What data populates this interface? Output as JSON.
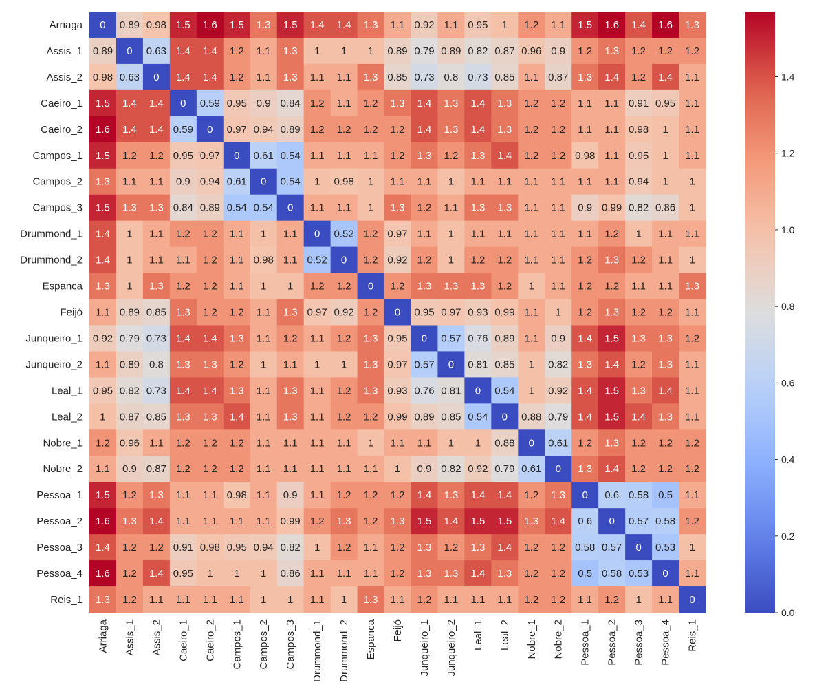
{
  "chart_data": {
    "type": "heatmap",
    "title": "",
    "xlabel": "",
    "ylabel": "",
    "colormap": "coolwarm",
    "annotated": true,
    "labels": [
      "Arriaga",
      "Assis_1",
      "Assis_2",
      "Caeiro_1",
      "Caeiro_2",
      "Campos_1",
      "Campos_2",
      "Campos_3",
      "Drummond_1",
      "Drummond_2",
      "Espanca",
      "Feijó",
      "Junqueiro_1",
      "Junqueiro_2",
      "Leal_1",
      "Leal_2",
      "Nobre_1",
      "Nobre_2",
      "Pessoa_1",
      "Pessoa_2",
      "Pessoa_3",
      "Pessoa_4",
      "Reis_1"
    ],
    "matrix": [
      [
        0,
        0.89,
        0.98,
        1.5,
        1.6,
        1.5,
        1.3,
        1.5,
        1.4,
        1.4,
        1.3,
        1.1,
        0.92,
        1.1,
        0.95,
        1,
        1.2,
        1.1,
        1.5,
        1.6,
        1.4,
        1.6,
        1.3
      ],
      [
        0.89,
        0,
        0.63,
        1.4,
        1.4,
        1.2,
        1.1,
        1.3,
        1,
        1,
        1,
        0.89,
        0.79,
        0.89,
        0.82,
        0.87,
        0.96,
        0.9,
        1.2,
        1.3,
        1.2,
        1.2,
        1.2
      ],
      [
        0.98,
        0.63,
        0,
        1.4,
        1.4,
        1.2,
        1.1,
        1.3,
        1.1,
        1.1,
        1.3,
        0.85,
        0.73,
        0.8,
        0.73,
        0.85,
        1.1,
        0.87,
        1.3,
        1.4,
        1.2,
        1.4,
        1.1
      ],
      [
        1.5,
        1.4,
        1.4,
        0,
        0.59,
        0.95,
        0.9,
        0.84,
        1.2,
        1.1,
        1.2,
        1.3,
        1.4,
        1.3,
        1.4,
        1.3,
        1.2,
        1.2,
        1.1,
        1.1,
        0.91,
        0.95,
        1.1
      ],
      [
        1.6,
        1.4,
        1.4,
        0.59,
        0,
        0.97,
        0.94,
        0.89,
        1.2,
        1.2,
        1.2,
        1.2,
        1.4,
        1.3,
        1.4,
        1.3,
        1.2,
        1.2,
        1.1,
        1.1,
        0.98,
        1,
        1.1
      ],
      [
        1.5,
        1.2,
        1.2,
        0.95,
        0.97,
        0,
        0.61,
        0.54,
        1.1,
        1.1,
        1.1,
        1.2,
        1.3,
        1.2,
        1.3,
        1.4,
        1.2,
        1.2,
        0.98,
        1.1,
        0.95,
        1,
        1.1
      ],
      [
        1.3,
        1.1,
        1.1,
        0.9,
        0.94,
        0.61,
        0,
        0.54,
        1,
        0.98,
        1,
        1.1,
        1.1,
        1,
        1.1,
        1.1,
        1.1,
        1.1,
        1.1,
        1.1,
        0.94,
        1,
        1
      ],
      [
        1.5,
        1.3,
        1.3,
        0.84,
        0.89,
        0.54,
        0.54,
        0,
        1.1,
        1.1,
        1,
        1.3,
        1.2,
        1.1,
        1.3,
        1.3,
        1.1,
        1.1,
        0.9,
        0.99,
        0.82,
        0.86,
        1
      ],
      [
        1.4,
        1,
        1.1,
        1.2,
        1.2,
        1.1,
        1,
        1.1,
        0,
        0.52,
        1.2,
        0.97,
        1.1,
        1,
        1.1,
        1.1,
        1.1,
        1.1,
        1.1,
        1.2,
        1,
        1.1,
        1.1
      ],
      [
        1.4,
        1,
        1.1,
        1.1,
        1.2,
        1.1,
        0.98,
        1.1,
        0.52,
        0,
        1.2,
        0.92,
        1.2,
        1,
        1.2,
        1.2,
        1.1,
        1.1,
        1.2,
        1.3,
        1.2,
        1.1,
        1
      ],
      [
        1.3,
        1,
        1.3,
        1.2,
        1.2,
        1.1,
        1,
        1,
        1.2,
        1.2,
        0,
        1.2,
        1.3,
        1.3,
        1.3,
        1.2,
        1,
        1.1,
        1.2,
        1.2,
        1.1,
        1.1,
        1.3
      ],
      [
        1.1,
        0.89,
        0.85,
        1.3,
        1.2,
        1.2,
        1.1,
        1.3,
        0.97,
        0.92,
        1.2,
        0,
        0.95,
        0.97,
        0.93,
        0.99,
        1.1,
        1,
        1.2,
        1.3,
        1.2,
        1.2,
        1.1
      ],
      [
        0.92,
        0.79,
        0.73,
        1.4,
        1.4,
        1.3,
        1.1,
        1.2,
        1.1,
        1.2,
        1.3,
        0.95,
        0,
        0.57,
        0.76,
        0.89,
        1.1,
        0.9,
        1.4,
        1.5,
        1.3,
        1.3,
        1.2
      ],
      [
        1.1,
        0.89,
        0.8,
        1.3,
        1.3,
        1.2,
        1,
        1.1,
        1,
        1,
        1.3,
        0.97,
        0.57,
        0,
        0.81,
        0.85,
        1,
        0.82,
        1.3,
        1.4,
        1.2,
        1.3,
        1.1
      ],
      [
        0.95,
        0.82,
        0.73,
        1.4,
        1.4,
        1.3,
        1.1,
        1.3,
        1.1,
        1.2,
        1.3,
        0.93,
        0.76,
        0.81,
        0,
        0.54,
        1,
        0.92,
        1.4,
        1.5,
        1.3,
        1.4,
        1.1
      ],
      [
        1,
        0.87,
        0.85,
        1.3,
        1.3,
        1.4,
        1.1,
        1.3,
        1.1,
        1.2,
        1.2,
        0.99,
        0.89,
        0.85,
        0.54,
        0,
        0.88,
        0.79,
        1.4,
        1.5,
        1.4,
        1.3,
        1.1
      ],
      [
        1.2,
        0.96,
        1.1,
        1.2,
        1.2,
        1.2,
        1.1,
        1.1,
        1.1,
        1.1,
        1,
        1.1,
        1.1,
        1,
        1,
        0.88,
        0,
        0.61,
        1.2,
        1.3,
        1.2,
        1.2,
        1.2
      ],
      [
        1.1,
        0.9,
        0.87,
        1.2,
        1.2,
        1.2,
        1.1,
        1.1,
        1.1,
        1.1,
        1.1,
        1,
        0.9,
        0.82,
        0.92,
        0.79,
        0.61,
        0,
        1.3,
        1.4,
        1.2,
        1.2,
        1.2
      ],
      [
        1.5,
        1.2,
        1.3,
        1.1,
        1.1,
        0.98,
        1.1,
        0.9,
        1.1,
        1.2,
        1.2,
        1.2,
        1.4,
        1.3,
        1.4,
        1.4,
        1.2,
        1.3,
        0,
        0.6,
        0.58,
        0.5,
        1.1
      ],
      [
        1.6,
        1.3,
        1.4,
        1.1,
        1.1,
        1.1,
        1.1,
        0.99,
        1.2,
        1.3,
        1.2,
        1.3,
        1.5,
        1.4,
        1.5,
        1.5,
        1.3,
        1.4,
        0.6,
        0,
        0.57,
        0.58,
        1.2
      ],
      [
        1.4,
        1.2,
        1.2,
        0.91,
        0.98,
        0.95,
        0.94,
        0.82,
        1,
        1.2,
        1.1,
        1.2,
        1.3,
        1.2,
        1.3,
        1.4,
        1.2,
        1.2,
        0.58,
        0.57,
        0,
        0.53,
        1
      ],
      [
        1.6,
        1.2,
        1.4,
        0.95,
        1,
        1,
        1,
        0.86,
        1.1,
        1.1,
        1.1,
        1.2,
        1.3,
        1.3,
        1.4,
        1.3,
        1.2,
        1.2,
        0.5,
        0.58,
        0.53,
        0,
        1.1
      ],
      [
        1.3,
        1.2,
        1.1,
        1.1,
        1.1,
        1.1,
        1,
        1,
        1.1,
        1,
        1.3,
        1.1,
        1.2,
        1.1,
        1.1,
        1.1,
        1.2,
        1.2,
        1.1,
        1.2,
        1,
        1.1,
        0
      ]
    ],
    "colorbar": {
      "vmin": 0.0,
      "vmax": 1.57,
      "ticks": [
        0.0,
        0.2,
        0.4,
        0.6,
        0.8,
        1.0,
        1.2,
        1.4
      ],
      "tick_labels": [
        "0.0",
        "0.2",
        "0.4",
        "0.6",
        "0.8",
        "1.0",
        "1.2",
        "1.4"
      ],
      "placement": "right"
    },
    "grid": false,
    "legend": "colorbar-right"
  }
}
